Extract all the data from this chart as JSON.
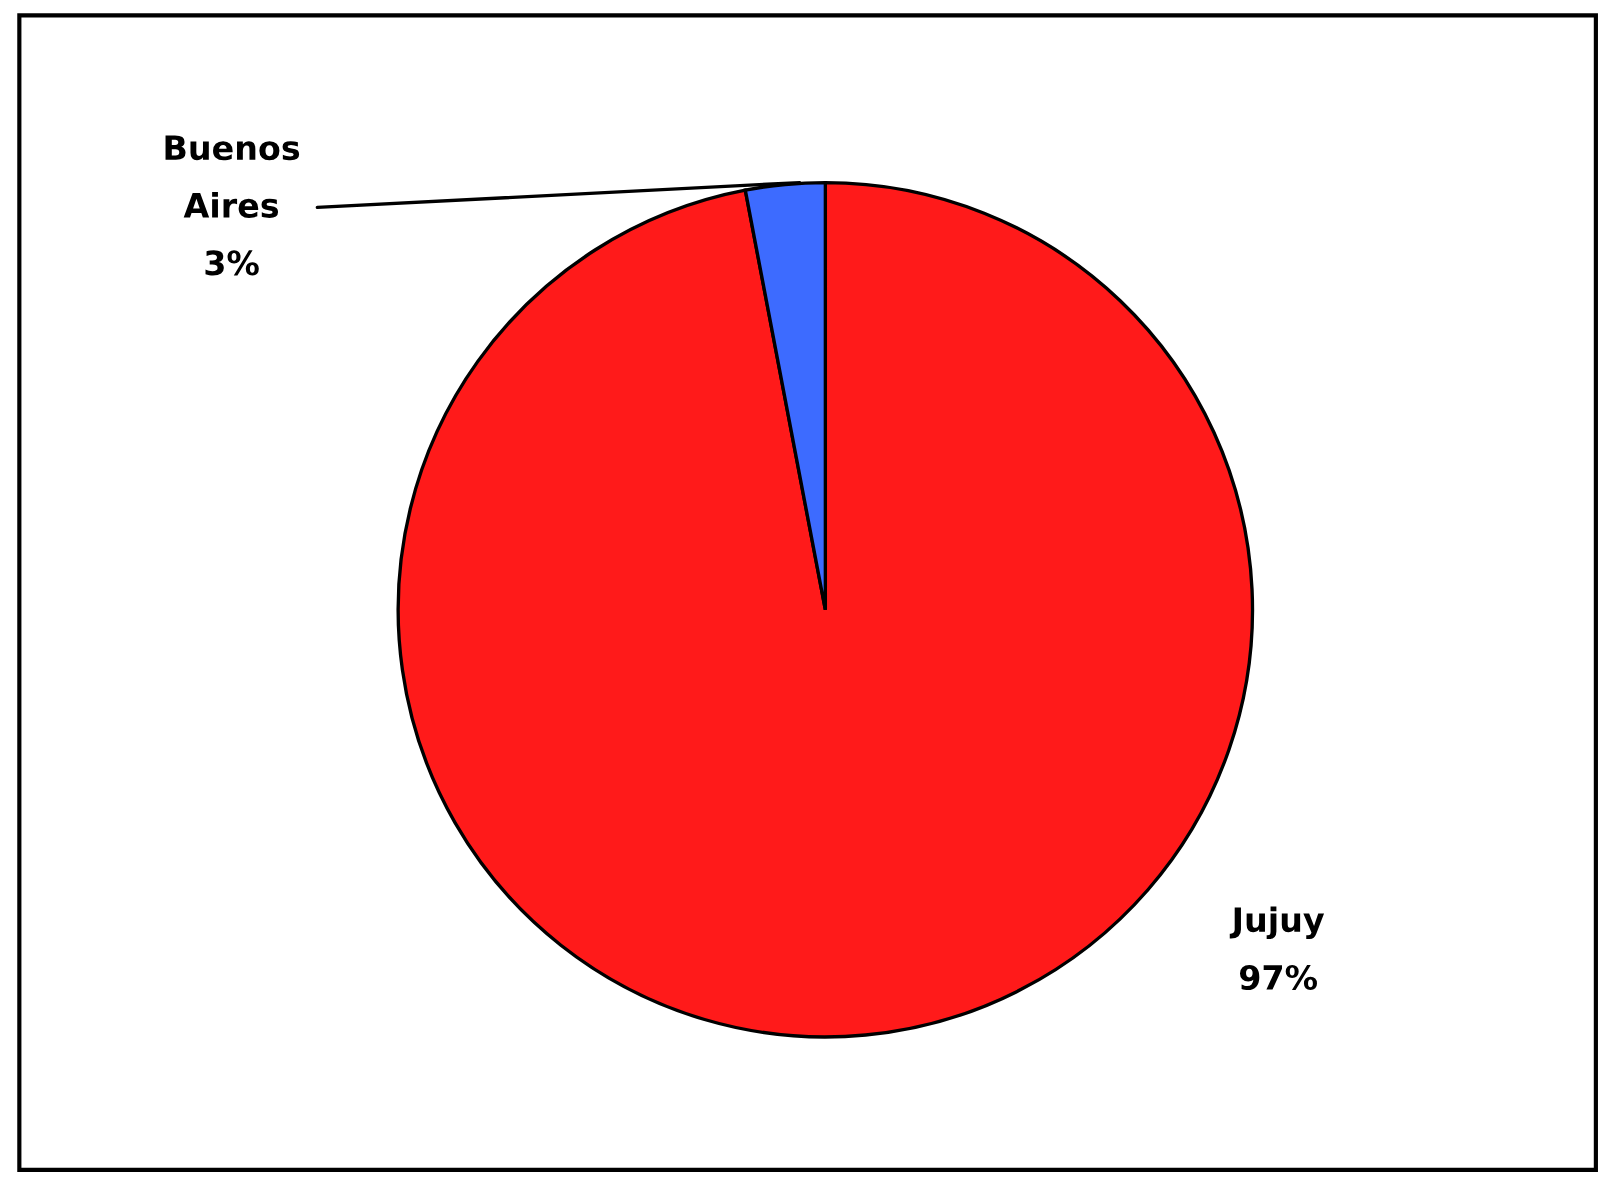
{
  "chart_data": {
    "type": "pie",
    "categories": [
      "Jujuy",
      "Buenos Aires"
    ],
    "values": [
      97,
      3
    ],
    "colors": [
      "#ff1a1a",
      "#3d6bff"
    ],
    "value_labels": [
      "97%",
      "3%"
    ]
  }
}
